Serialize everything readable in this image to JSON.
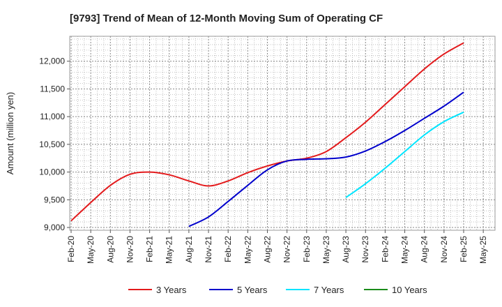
{
  "chart_data": {
    "type": "line",
    "title": "[9793]  Trend of Mean of 12-Month Moving Sum of Operating CF",
    "xlabel": "",
    "ylabel": "Amount (million yen)",
    "ylim": [
      8950,
      12450
    ],
    "yticks": [
      9000,
      9500,
      10000,
      10500,
      11000,
      11500,
      12000
    ],
    "ytick_labels": [
      "9,000",
      "9,500",
      "10,000",
      "10,500",
      "11,000",
      "11,500",
      "12,000"
    ],
    "xtick_labels": [
      "Feb-20",
      "May-20",
      "Aug-20",
      "Nov-20",
      "Feb-21",
      "May-21",
      "Aug-21",
      "Nov-21",
      "Feb-22",
      "May-22",
      "Aug-22",
      "Nov-22",
      "Feb-23",
      "May-23",
      "Aug-23",
      "Nov-23",
      "Feb-24",
      "May-24",
      "Aug-24",
      "Nov-24",
      "Feb-25",
      "May-25"
    ],
    "grid": true,
    "legend_position": "bottom",
    "series": [
      {
        "name": "3 Years",
        "color": "#e31a1c",
        "start_index": 0,
        "values": [
          9120,
          9450,
          9760,
          9960,
          10000,
          9950,
          9840,
          9750,
          9840,
          9990,
          10110,
          10200,
          10250,
          10370,
          10620,
          10900,
          11220,
          11540,
          11860,
          12130,
          12330
        ]
      },
      {
        "name": "5 Years",
        "color": "#0000cc",
        "start_index": 6,
        "values": [
          9020,
          9190,
          9470,
          9760,
          10040,
          10200,
          10230,
          10240,
          10270,
          10380,
          10550,
          10750,
          10970,
          11190,
          11440
        ]
      },
      {
        "name": "7 Years",
        "color": "#00e5ff",
        "start_index": 14,
        "values": [
          9540,
          9790,
          10070,
          10370,
          10670,
          10910,
          11080
        ]
      },
      {
        "name": "10 Years",
        "color": "#1a8c1a",
        "start_index": 0,
        "values": []
      }
    ]
  }
}
